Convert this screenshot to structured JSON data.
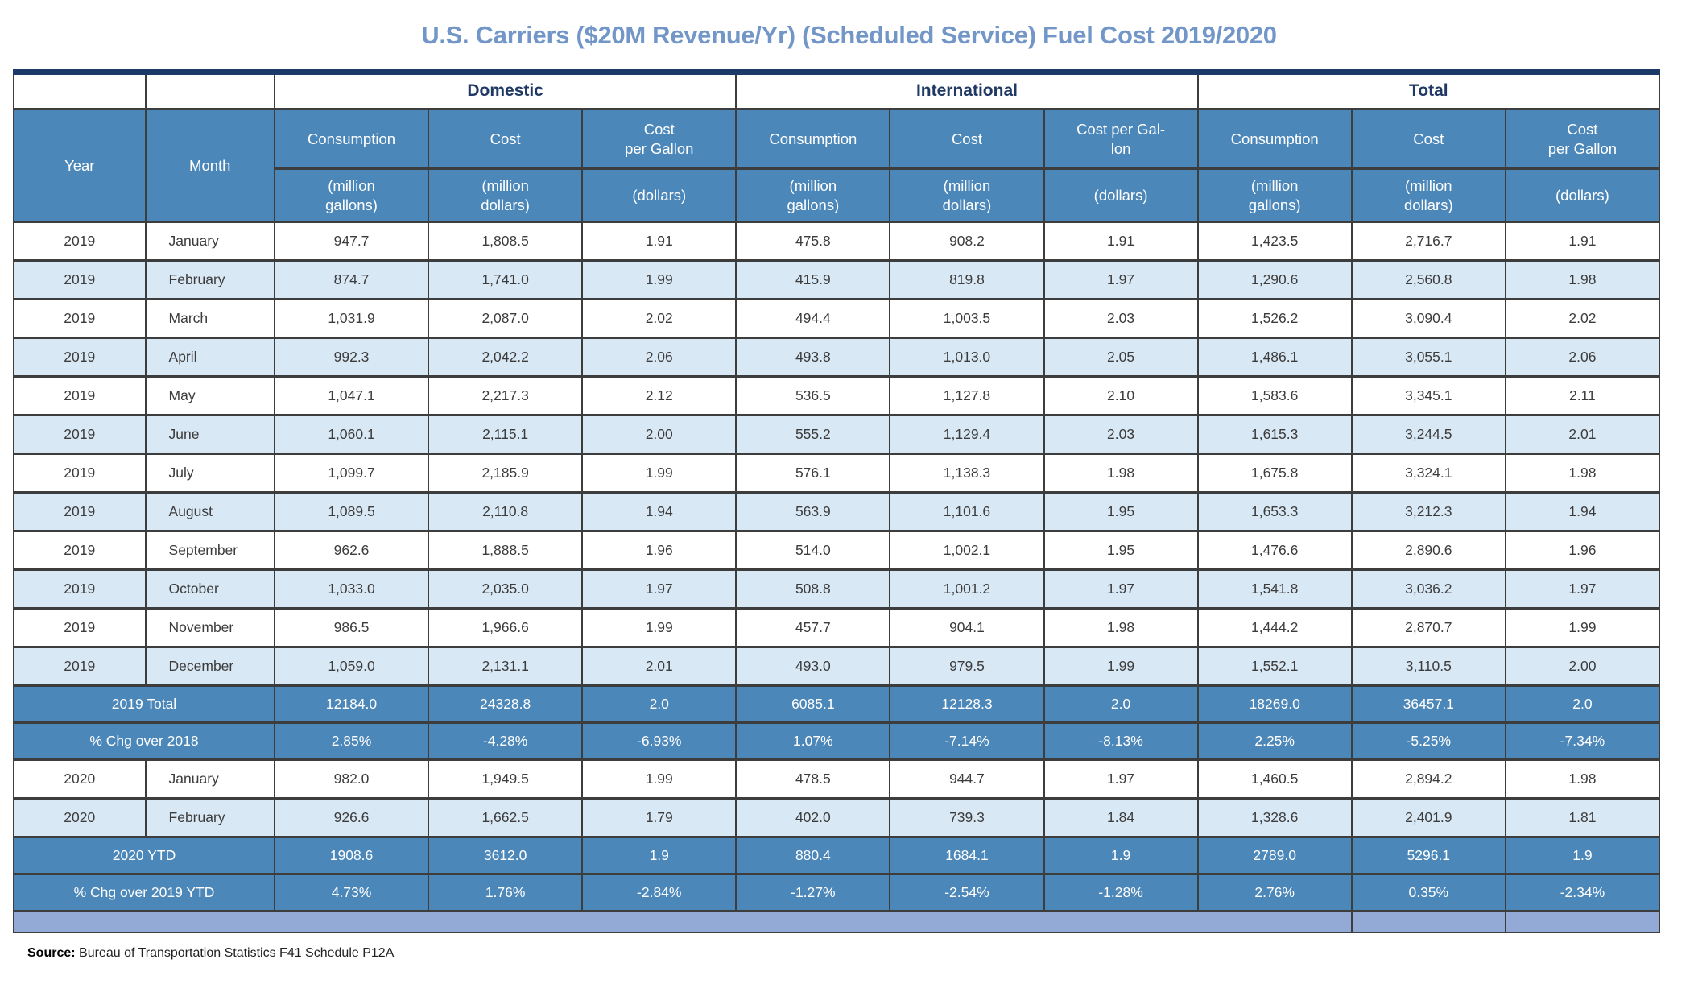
{
  "title": "U.S. Carriers ($20M Revenue/Yr) (Scheduled Service) Fuel Cost 2019/2020",
  "header": {
    "year": "Year",
    "month": "Month",
    "groups": [
      {
        "label": "Domestic"
      },
      {
        "label": "International"
      },
      {
        "label": "Total"
      }
    ],
    "columns": [
      {
        "label": "Consumption",
        "unit": "(million\ngallons)"
      },
      {
        "label": "Cost",
        "unit": "(million\ndollars)"
      },
      {
        "label": "Cost\nper Gallon",
        "unit": "(dollars)"
      },
      {
        "label": "Consumption",
        "unit": "(million\ngallons)"
      },
      {
        "label": "Cost",
        "unit": "(million\ndollars)"
      },
      {
        "label": "Cost per Gal-\nlon",
        "unit": "(dollars)"
      },
      {
        "label": "Consumption",
        "unit": "(million\ngallons)"
      },
      {
        "label": "Cost",
        "unit": "(million\ndollars)"
      },
      {
        "label": "Cost\nper Gallon",
        "unit": "(dollars)"
      }
    ]
  },
  "rows": [
    {
      "type": "data",
      "year": "2019",
      "month": "January",
      "shaded": false,
      "values": [
        "947.7",
        "1,808.5",
        "1.91",
        "475.8",
        "908.2",
        "1.91",
        "1,423.5",
        "2,716.7",
        "1.91"
      ]
    },
    {
      "type": "data",
      "year": "2019",
      "month": "February",
      "shaded": true,
      "values": [
        "874.7",
        "1,741.0",
        "1.99",
        "415.9",
        "819.8",
        "1.97",
        "1,290.6",
        "2,560.8",
        "1.98"
      ]
    },
    {
      "type": "data",
      "year": "2019",
      "month": "March",
      "shaded": false,
      "values": [
        "1,031.9",
        "2,087.0",
        "2.02",
        "494.4",
        "1,003.5",
        "2.03",
        "1,526.2",
        "3,090.4",
        "2.02"
      ]
    },
    {
      "type": "data",
      "year": "2019",
      "month": "April",
      "shaded": true,
      "values": [
        "992.3",
        "2,042.2",
        "2.06",
        "493.8",
        "1,013.0",
        "2.05",
        "1,486.1",
        "3,055.1",
        "2.06"
      ]
    },
    {
      "type": "data",
      "year": "2019",
      "month": "May",
      "shaded": false,
      "values": [
        "1,047.1",
        "2,217.3",
        "2.12",
        "536.5",
        "1,127.8",
        "2.10",
        "1,583.6",
        "3,345.1",
        "2.11"
      ]
    },
    {
      "type": "data",
      "year": "2019",
      "month": "June",
      "shaded": true,
      "values": [
        "1,060.1",
        "2,115.1",
        "2.00",
        "555.2",
        "1,129.4",
        "2.03",
        "1,615.3",
        "3,244.5",
        "2.01"
      ]
    },
    {
      "type": "data",
      "year": "2019",
      "month": "July",
      "shaded": false,
      "values": [
        "1,099.7",
        "2,185.9",
        "1.99",
        "576.1",
        "1,138.3",
        "1.98",
        "1,675.8",
        "3,324.1",
        "1.98"
      ]
    },
    {
      "type": "data",
      "year": "2019",
      "month": "August",
      "shaded": true,
      "values": [
        "1,089.5",
        "2,110.8",
        "1.94",
        "563.9",
        "1,101.6",
        "1.95",
        "1,653.3",
        "3,212.3",
        "1.94"
      ]
    },
    {
      "type": "data",
      "year": "2019",
      "month": "September",
      "shaded": false,
      "values": [
        "962.6",
        "1,888.5",
        "1.96",
        "514.0",
        "1,002.1",
        "1.95",
        "1,476.6",
        "2,890.6",
        "1.96"
      ]
    },
    {
      "type": "data",
      "year": "2019",
      "month": "October",
      "shaded": true,
      "values": [
        "1,033.0",
        "2,035.0",
        "1.97",
        "508.8",
        "1,001.2",
        "1.97",
        "1,541.8",
        "3,036.2",
        "1.97"
      ]
    },
    {
      "type": "data",
      "year": "2019",
      "month": "November",
      "shaded": false,
      "values": [
        "986.5",
        "1,966.6",
        "1.99",
        "457.7",
        "904.1",
        "1.98",
        "1,444.2",
        "2,870.7",
        "1.99"
      ]
    },
    {
      "type": "data",
      "year": "2019",
      "month": "December",
      "shaded": true,
      "values": [
        "1,059.0",
        "2,131.1",
        "2.01",
        "493.0",
        "979.5",
        "1.99",
        "1,552.1",
        "3,110.5",
        "2.00"
      ]
    },
    {
      "type": "summary",
      "label": "2019 Total",
      "values": [
        "12184.0",
        "24328.8",
        "2.0",
        "6085.1",
        "12128.3",
        "2.0",
        "18269.0",
        "36457.1",
        "2.0"
      ]
    },
    {
      "type": "summary",
      "label": "% Chg over 2018",
      "values": [
        "2.85%",
        "-4.28%",
        "-6.93%",
        "1.07%",
        "-7.14%",
        "-8.13%",
        "2.25%",
        "-5.25%",
        "-7.34%"
      ]
    },
    {
      "type": "data",
      "year": "2020",
      "month": "January",
      "shaded": false,
      "values": [
        "982.0",
        "1,949.5",
        "1.99",
        "478.5",
        "944.7",
        "1.97",
        "1,460.5",
        "2,894.2",
        "1.98"
      ]
    },
    {
      "type": "data",
      "year": "2020",
      "month": "February",
      "shaded": true,
      "values": [
        "926.6",
        "1,662.5",
        "1.79",
        "402.0",
        "739.3",
        "1.84",
        "1,328.6",
        "2,401.9",
        "1.81"
      ]
    },
    {
      "type": "summary",
      "label": "2020 YTD",
      "values": [
        "1908.6",
        "3612.0",
        "1.9",
        "880.4",
        "1684.1",
        "1.9",
        "2789.0",
        "5296.1",
        "1.9"
      ]
    },
    {
      "type": "summary",
      "label": "% Chg over 2019 YTD",
      "values": [
        "4.73%",
        "1.76%",
        "-2.84%",
        "-1.27%",
        "-2.54%",
        "-1.28%",
        "2.76%",
        "0.35%",
        "-2.34%"
      ]
    }
  ],
  "source": {
    "label": "Source:",
    "text": " Bureau of Transportation Statistics F41 Schedule P12A"
  },
  "colors": {
    "title_blue": "#7296c8",
    "header_blue": "#4c87b9",
    "group_navy": "#1f3864",
    "top_rule_navy": "#1c3968",
    "shaded_row_blue": "#d9e8f5",
    "summary_row_blue": "#4c87b9",
    "footer_strip_blue": "#93a9d6",
    "border_gray": "#3d3d3d"
  }
}
